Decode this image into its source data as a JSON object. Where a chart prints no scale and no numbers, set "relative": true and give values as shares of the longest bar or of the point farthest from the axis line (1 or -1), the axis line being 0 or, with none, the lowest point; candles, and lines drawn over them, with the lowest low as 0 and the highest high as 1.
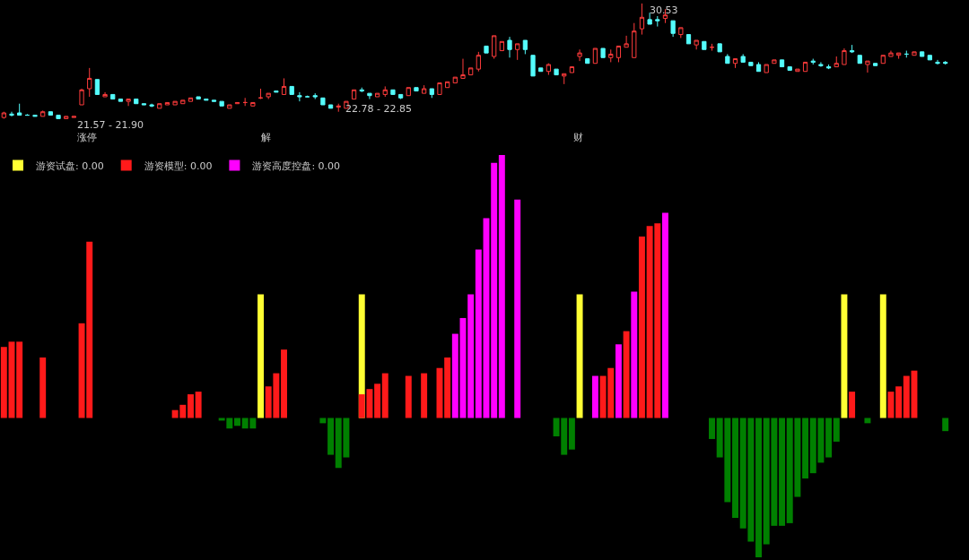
{
  "chart_data": [
    {
      "type": "candlestick",
      "relative": true,
      "categories": [
        null,
        null,
        null,
        null,
        null,
        null,
        null,
        null,
        null,
        null,
        null,
        null,
        null,
        null,
        null,
        null,
        null,
        null,
        null,
        null,
        null,
        null,
        null,
        null,
        null,
        null,
        null,
        null,
        null,
        null,
        null,
        null,
        null,
        null,
        null,
        null,
        null,
        null,
        null,
        null,
        null,
        null,
        null,
        null,
        null,
        null,
        null,
        null,
        null,
        null,
        null,
        null,
        null,
        null,
        null,
        null,
        null,
        null,
        null,
        null,
        null,
        null,
        null,
        null,
        null,
        null,
        null,
        null,
        null,
        null,
        null,
        null,
        null,
        null,
        null,
        null,
        null,
        null,
        null,
        null,
        null,
        null,
        null,
        null,
        null,
        null,
        null,
        null,
        null,
        null,
        null,
        null,
        null,
        null,
        null,
        null,
        null,
        null,
        null,
        null,
        null,
        null,
        null,
        null,
        null,
        null,
        null,
        null,
        null,
        null,
        null,
        null,
        null,
        null,
        null,
        null,
        null,
        null,
        null,
        null,
        null,
        null
      ],
      "ohlc": [
        [
          0.01,
          0.06,
          0.0,
          0.05
        ],
        [
          0.04,
          0.06,
          0.02,
          0.03
        ],
        [
          0.05,
          0.13,
          0.03,
          0.03
        ],
        [
          0.03,
          0.04,
          0.03,
          0.03
        ],
        [
          0.03,
          0.03,
          0.02,
          0.02
        ],
        [
          0.02,
          0.07,
          0.02,
          0.06
        ],
        [
          0.06,
          0.06,
          0.03,
          0.03
        ],
        [
          0.03,
          0.03,
          0.0,
          0.0
        ],
        [
          0.0,
          0.02,
          0.0,
          0.02
        ],
        [
          0.01,
          0.02,
          0.01,
          0.02
        ],
        [
          0.12,
          0.26,
          0.12,
          0.25
        ],
        [
          0.26,
          0.44,
          0.19,
          0.35
        ],
        [
          0.34,
          0.34,
          0.21,
          0.21
        ],
        [
          0.19,
          0.23,
          0.19,
          0.21
        ],
        [
          0.21,
          0.21,
          0.17,
          0.17
        ],
        [
          0.17,
          0.17,
          0.15,
          0.15
        ],
        [
          0.15,
          0.17,
          0.11,
          0.17
        ],
        [
          0.17,
          0.17,
          0.13,
          0.13
        ],
        [
          0.13,
          0.13,
          0.12,
          0.12
        ],
        [
          0.12,
          0.13,
          0.1,
          0.11
        ],
        [
          0.09,
          0.13,
          0.09,
          0.13
        ],
        [
          0.12,
          0.14,
          0.12,
          0.14
        ],
        [
          0.12,
          0.15,
          0.12,
          0.15
        ],
        [
          0.13,
          0.16,
          0.13,
          0.16
        ],
        [
          0.15,
          0.18,
          0.15,
          0.18
        ],
        [
          0.19,
          0.19,
          0.17,
          0.17
        ],
        [
          0.17,
          0.17,
          0.16,
          0.16
        ],
        [
          0.16,
          0.16,
          0.15,
          0.15
        ],
        [
          0.15,
          0.15,
          0.11,
          0.11
        ],
        [
          0.09,
          0.12,
          0.09,
          0.12
        ],
        [
          0.13,
          0.14,
          0.13,
          0.14
        ],
        [
          0.14,
          0.18,
          0.11,
          0.14
        ],
        [
          0.11,
          0.14,
          0.11,
          0.14
        ],
        [
          0.18,
          0.26,
          0.17,
          0.18
        ],
        [
          0.19,
          0.22,
          0.17,
          0.22
        ],
        [
          0.24,
          0.24,
          0.23,
          0.23
        ],
        [
          0.21,
          0.35,
          0.21,
          0.28
        ],
        [
          0.28,
          0.28,
          0.21,
          0.21
        ],
        [
          0.2,
          0.23,
          0.15,
          0.19
        ],
        [
          0.19,
          0.2,
          0.19,
          0.19
        ],
        [
          0.2,
          0.22,
          0.17,
          0.19
        ],
        [
          0.18,
          0.18,
          0.12,
          0.12
        ],
        [
          0.12,
          0.12,
          0.09,
          0.09
        ],
        [
          0.1,
          0.13,
          0.06,
          0.11
        ],
        [
          0.09,
          0.15,
          0.09,
          0.15
        ],
        [
          0.17,
          0.25,
          0.17,
          0.25
        ],
        [
          0.25,
          0.27,
          0.23,
          0.24
        ],
        [
          0.22,
          0.22,
          0.17,
          0.2
        ],
        [
          0.19,
          0.22,
          0.19,
          0.22
        ],
        [
          0.21,
          0.28,
          0.19,
          0.25
        ],
        [
          0.25,
          0.25,
          0.21,
          0.21
        ],
        [
          0.21,
          0.21,
          0.17,
          0.18
        ],
        [
          0.2,
          0.27,
          0.2,
          0.27
        ],
        [
          0.27,
          0.27,
          0.24,
          0.24
        ],
        [
          0.22,
          0.29,
          0.22,
          0.26
        ],
        [
          0.26,
          0.26,
          0.18,
          0.21
        ],
        [
          0.21,
          0.31,
          0.21,
          0.31
        ],
        [
          0.27,
          0.32,
          0.27,
          0.32
        ],
        [
          0.31,
          0.36,
          0.31,
          0.36
        ],
        [
          0.35,
          0.52,
          0.35,
          0.38
        ],
        [
          0.38,
          0.44,
          0.38,
          0.44
        ],
        [
          0.43,
          0.58,
          0.41,
          0.55
        ],
        [
          0.63,
          0.63,
          0.57,
          0.57
        ],
        [
          0.54,
          0.72,
          0.52,
          0.72
        ],
        [
          0.59,
          0.67,
          0.59,
          0.67
        ],
        [
          0.68,
          0.71,
          0.53,
          0.6
        ],
        [
          0.6,
          0.65,
          0.51,
          0.65
        ],
        [
          0.68,
          0.68,
          0.56,
          0.6
        ],
        [
          0.55,
          0.55,
          0.37,
          0.37
        ],
        [
          0.44,
          0.44,
          0.41,
          0.41
        ],
        [
          0.41,
          0.48,
          0.38,
          0.47
        ],
        [
          0.43,
          0.43,
          0.38,
          0.38
        ],
        [
          0.37,
          0.39,
          0.3,
          0.39
        ],
        [
          0.4,
          0.45,
          0.4,
          0.45
        ],
        [
          0.54,
          0.6,
          0.5,
          0.57
        ],
        [
          0.52,
          0.52,
          0.48,
          0.48
        ],
        [
          0.48,
          0.61,
          0.48,
          0.61
        ],
        [
          0.61,
          0.61,
          0.53,
          0.53
        ],
        [
          0.53,
          0.6,
          0.49,
          0.56
        ],
        [
          0.53,
          0.63,
          0.49,
          0.63
        ],
        [
          0.62,
          0.72,
          0.62,
          0.65
        ],
        [
          0.53,
          0.83,
          0.53,
          0.76
        ],
        [
          0.78,
          1,
          0.73,
          0.88
        ],
        [
          0.86,
          0.92,
          0.82,
          0.82
        ],
        [
          0.86,
          0.89,
          0.8,
          0.85
        ],
        [
          0.87,
          0.95,
          0.83,
          0.9
        ],
        [
          0.85,
          0.85,
          0.71,
          0.74
        ],
        [
          0.73,
          0.79,
          0.7,
          0.79
        ],
        [
          0.73,
          0.73,
          0.65,
          0.65
        ],
        [
          0.64,
          0.68,
          0.6,
          0.68
        ],
        [
          0.67,
          0.67,
          0.6,
          0.6
        ],
        [
          0.62,
          0.65,
          0.59,
          0.62
        ],
        [
          0.65,
          0.65,
          0.58,
          0.58
        ],
        [
          0.54,
          0.56,
          0.48,
          0.48
        ],
        [
          0.48,
          0.52,
          0.44,
          0.52
        ],
        [
          0.54,
          0.56,
          0.49,
          0.49
        ],
        [
          0.49,
          0.49,
          0.46,
          0.46
        ],
        [
          0.47,
          0.49,
          0.41,
          0.41
        ],
        [
          0.4,
          0.47,
          0.4,
          0.47
        ],
        [
          0.48,
          0.51,
          0.48,
          0.51
        ],
        [
          0.51,
          0.51,
          0.45,
          0.45
        ],
        [
          0.45,
          0.45,
          0.42,
          0.42
        ],
        [
          0.41,
          0.43,
          0.41,
          0.43
        ],
        [
          0.41,
          0.49,
          0.41,
          0.49
        ],
        [
          0.5,
          0.52,
          0.47,
          0.49
        ],
        [
          0.47,
          0.49,
          0.45,
          0.46
        ],
        [
          0.45,
          0.47,
          0.43,
          0.44
        ],
        [
          0.45,
          0.54,
          0.45,
          0.48
        ],
        [
          0.47,
          0.61,
          0.47,
          0.59
        ],
        [
          0.59,
          0.64,
          0.57,
          0.58
        ],
        [
          0.55,
          0.55,
          0.48,
          0.48
        ],
        [
          0.47,
          0.5,
          0.4,
          0.5
        ],
        [
          0.48,
          0.48,
          0.46,
          0.46
        ],
        [
          0.48,
          0.55,
          0.48,
          0.55
        ],
        [
          0.54,
          0.59,
          0.54,
          0.57
        ],
        [
          0.55,
          0.57,
          0.52,
          0.57
        ],
        [
          0.56,
          0.59,
          0.53,
          0.56
        ],
        [
          0.55,
          0.58,
          0.55,
          0.58
        ],
        [
          0.58,
          0.58,
          0.54,
          0.54
        ],
        [
          0.55,
          0.55,
          0.51,
          0.51
        ],
        [
          0.49,
          0.51,
          0.47,
          0.48
        ],
        [
          0.49,
          0.5,
          0.47,
          0.48
        ]
      ],
      "annotations": [
        "30.53",
        "21.57 - 21.90",
        "22.78 - 22.85",
        "涨停",
        "解",
        "财"
      ]
    },
    {
      "type": "bar",
      "relative": true,
      "legend": "top left",
      "categories": [
        null,
        null,
        null,
        null,
        null,
        null,
        null,
        null,
        null,
        null,
        null,
        null,
        null,
        null,
        null,
        null,
        null,
        null,
        null,
        null,
        null,
        null,
        null,
        null,
        null,
        null,
        null,
        null,
        null,
        null,
        null,
        null,
        null,
        null,
        null,
        null,
        null,
        null,
        null,
        null,
        null,
        null,
        null,
        null,
        null,
        null,
        null,
        null,
        null,
        null,
        null,
        null,
        null,
        null,
        null,
        null,
        null,
        null,
        null,
        null,
        null,
        null,
        null,
        null,
        null,
        null,
        null,
        null,
        null,
        null,
        null,
        null,
        null,
        null,
        null,
        null,
        null,
        null,
        null,
        null,
        null,
        null,
        null,
        null,
        null,
        null,
        null,
        null,
        null,
        null,
        null,
        null,
        null,
        null,
        null,
        null,
        null,
        null,
        null,
        null,
        null,
        null,
        null,
        null,
        null,
        null,
        null,
        null,
        null,
        null,
        null,
        null,
        null,
        null,
        null,
        null,
        null,
        null,
        null,
        null,
        null,
        null
      ],
      "series": [
        {
          "name": "游资试盘: 0.00",
          "color": "#ffff33",
          "values": [
            null,
            null,
            null,
            null,
            null,
            null,
            null,
            null,
            null,
            null,
            null,
            null,
            null,
            null,
            null,
            null,
            null,
            null,
            null,
            null,
            null,
            null,
            null,
            null,
            null,
            null,
            null,
            null,
            null,
            null,
            null,
            null,
            null,
            0.47,
            null,
            null,
            null,
            null,
            null,
            null,
            null,
            null,
            null,
            null,
            null,
            null,
            0.47,
            null,
            null,
            null,
            null,
            null,
            null,
            null,
            null,
            null,
            null,
            null,
            null,
            null,
            null,
            null,
            null,
            null,
            null,
            null,
            null,
            null,
            null,
            null,
            null,
            null,
            null,
            null,
            0.47,
            null,
            null,
            null,
            null,
            null,
            null,
            null,
            null,
            null,
            null,
            null,
            null,
            null,
            null,
            null,
            null,
            null,
            null,
            null,
            null,
            null,
            null,
            null,
            null,
            null,
            null,
            null,
            null,
            null,
            null,
            null,
            null,
            null,
            0.47,
            null,
            null,
            null,
            null,
            0.47,
            null,
            null,
            null,
            null,
            null,
            null,
            null,
            null
          ]
        },
        {
          "name": "游资模型: 0.00",
          "color": "#ff1a1a",
          "values": [
            0.27,
            0.29,
            0.29,
            null,
            null,
            0.23,
            null,
            null,
            null,
            null,
            0.36,
            0.67,
            null,
            null,
            null,
            null,
            null,
            null,
            null,
            null,
            null,
            null,
            0.03,
            0.05,
            0.09,
            0.1,
            null,
            null,
            null,
            null,
            null,
            null,
            null,
            null,
            0.12,
            0.17,
            0.26,
            null,
            null,
            null,
            null,
            null,
            null,
            null,
            null,
            null,
            0.09,
            0.11,
            0.13,
            0.17,
            null,
            null,
            0.16,
            null,
            0.17,
            null,
            0.19,
            0.23,
            null,
            null,
            null,
            null,
            null,
            null,
            null,
            null,
            null,
            null,
            null,
            null,
            null,
            null,
            null,
            null,
            null,
            null,
            null,
            0.16,
            0.19,
            null,
            0.33,
            null,
            0.69,
            0.73,
            0.74,
            null,
            null,
            null,
            null,
            null,
            null,
            null,
            null,
            null,
            null,
            null,
            null,
            null,
            null,
            null,
            null,
            null,
            null,
            null,
            null,
            null,
            null,
            null,
            null,
            0.1,
            null,
            null,
            null,
            null,
            0.1,
            0.12,
            0.16,
            0.18,
            null,
            null,
            null,
            null
          ]
        },
        {
          "name": "游资高度控盘: 0.00",
          "color": "#ff00ff",
          "values": [
            null,
            null,
            null,
            null,
            null,
            null,
            null,
            null,
            null,
            null,
            null,
            null,
            null,
            null,
            null,
            null,
            null,
            null,
            null,
            null,
            null,
            null,
            null,
            null,
            null,
            null,
            null,
            null,
            null,
            null,
            null,
            null,
            null,
            null,
            null,
            null,
            null,
            null,
            null,
            null,
            null,
            null,
            null,
            null,
            null,
            null,
            null,
            null,
            null,
            null,
            null,
            null,
            null,
            null,
            null,
            null,
            null,
            null,
            0.32,
            0.38,
            0.47,
            0.64,
            0.76,
            0.97,
            1.0,
            null,
            0.83,
            null,
            null,
            null,
            null,
            null,
            null,
            null,
            null,
            null,
            0.16,
            null,
            null,
            0.28,
            null,
            0.48,
            null,
            null,
            null,
            0.78,
            null,
            null,
            null,
            null,
            null,
            null,
            null,
            null,
            null,
            null,
            null,
            null,
            null,
            null,
            null,
            null,
            null,
            null,
            null,
            null,
            null,
            null,
            null,
            null,
            null,
            null,
            null,
            null,
            null,
            null,
            null,
            null,
            null,
            null,
            null,
            null
          ]
        },
        {
          "color": "#008000",
          "values": [
            null,
            null,
            null,
            null,
            null,
            null,
            null,
            null,
            null,
            null,
            null,
            null,
            null,
            null,
            null,
            null,
            null,
            null,
            null,
            null,
            null,
            null,
            null,
            null,
            null,
            null,
            null,
            null,
            -0.01,
            -0.04,
            -0.03,
            -0.04,
            -0.04,
            null,
            null,
            null,
            null,
            null,
            null,
            null,
            null,
            -0.02,
            -0.14,
            -0.19,
            -0.15,
            null,
            null,
            null,
            null,
            null,
            null,
            null,
            null,
            null,
            null,
            null,
            null,
            null,
            null,
            null,
            null,
            null,
            null,
            null,
            null,
            null,
            null,
            null,
            null,
            null,
            null,
            -0.07,
            -0.14,
            -0.12,
            null,
            null,
            null,
            null,
            null,
            null,
            null,
            null,
            null,
            null,
            null,
            null,
            null,
            null,
            null,
            null,
            null,
            -0.08,
            -0.15,
            -0.32,
            -0.38,
            -0.42,
            -0.47,
            -0.53,
            -0.48,
            -0.41,
            -0.41,
            -0.4,
            -0.3,
            -0.23,
            -0.21,
            -0.17,
            -0.15,
            -0.09,
            null,
            null,
            null,
            -0.02,
            null,
            null,
            null,
            null,
            null,
            null,
            null,
            null,
            null,
            -0.05
          ]
        }
      ]
    }
  ]
}
